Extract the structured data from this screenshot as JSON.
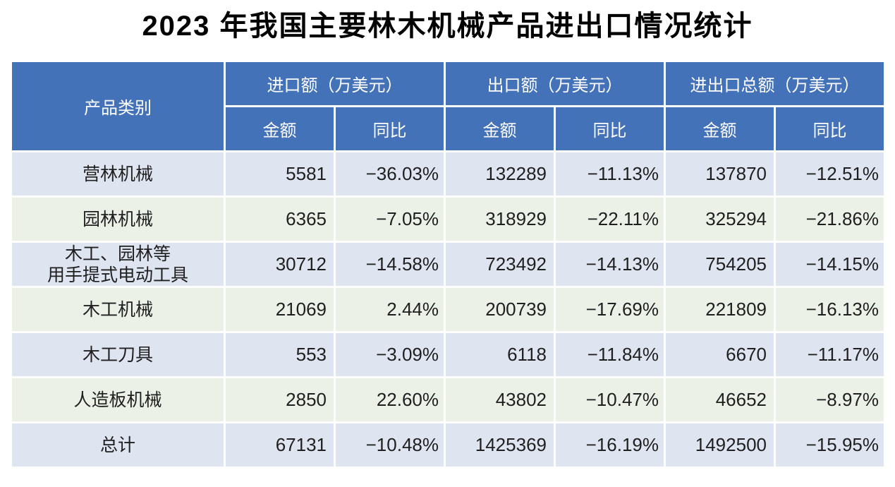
{
  "chart_data": {
    "type": "table",
    "title": "2023 年我国主要林木机械产品进出口情况统计",
    "columns": {
      "product": "产品类别",
      "groups": [
        "进口额（万美元）",
        "出口额（万美元）",
        "进出口总额（万美元）"
      ],
      "subheaders": [
        "金额",
        "同比"
      ]
    },
    "rows": [
      {
        "product": "营林机械",
        "import_amount": "5581",
        "import_yoy": "−36.03%",
        "export_amount": "132289",
        "export_yoy": "−11.13%",
        "total_amount": "137870",
        "total_yoy": "−12.51%"
      },
      {
        "product": "园林机械",
        "import_amount": "6365",
        "import_yoy": "−7.05%",
        "export_amount": "318929",
        "export_yoy": "−22.11%",
        "total_amount": "325294",
        "total_yoy": "−21.86%"
      },
      {
        "product": "木工、园林等\n用手提式电动工具",
        "import_amount": "30712",
        "import_yoy": "−14.58%",
        "export_amount": "723492",
        "export_yoy": "−14.13%",
        "total_amount": "754205",
        "total_yoy": "−14.15%"
      },
      {
        "product": "木工机械",
        "import_amount": "21069",
        "import_yoy": "2.44%",
        "export_amount": "200739",
        "export_yoy": "−17.69%",
        "total_amount": "221809",
        "total_yoy": "−16.13%"
      },
      {
        "product": "木工刀具",
        "import_amount": "553",
        "import_yoy": "−3.09%",
        "export_amount": "6118",
        "export_yoy": "−11.84%",
        "total_amount": "6670",
        "total_yoy": "−11.17%"
      },
      {
        "product": "人造板机械",
        "import_amount": "2850",
        "import_yoy": "22.60%",
        "export_amount": "43802",
        "export_yoy": "−10.47%",
        "total_amount": "46652",
        "total_yoy": "−8.97%"
      },
      {
        "product": "总计",
        "import_amount": "67131",
        "import_yoy": "−10.48%",
        "export_amount": "1425369",
        "export_yoy": "−16.19%",
        "total_amount": "1492500",
        "total_yoy": "−15.95%"
      }
    ]
  },
  "colors": {
    "header_bg": "#4472b9",
    "header_text": "#ffffff",
    "row_lavender_bg": "#dee4f0",
    "row_green_bg": "#ecf1e8",
    "body_text": "#1f1f1f",
    "grid_line": "#ffffff",
    "title_text": "#000000"
  }
}
